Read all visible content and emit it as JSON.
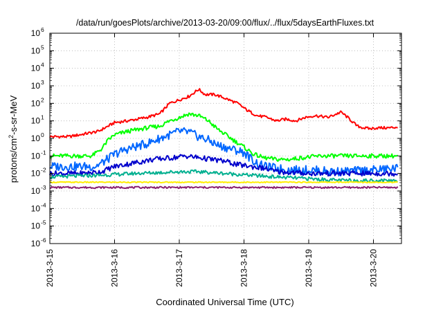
{
  "chart_data": {
    "type": "line",
    "title": "/data/run/goesPlots/archive/2013-03-20/09:00/flux/../flux/5daysEarthFluxes.txt",
    "xlabel": "Coordinated Universal Time (UTC)",
    "ylabel": {
      "prefix": "protons/cm",
      "superscript": "2",
      "suffix": "-s-sr-MeV"
    },
    "y_scale": "log",
    "y_exponent_range": [
      -6,
      6
    ],
    "ylim": [
      1e-06,
      1000000.0
    ],
    "y_tick_base": "10",
    "xlim": [
      "2013-03-15T00:00",
      "2013-03-20T09:00"
    ],
    "x_ticks": [
      {
        "label": "2013-3-15",
        "value": "2013-03-15"
      },
      {
        "label": "2013-3-16",
        "value": "2013-03-16"
      },
      {
        "label": "2013-3-17",
        "value": "2013-03-17"
      },
      {
        "label": "2013-3-18",
        "value": "2013-03-18"
      },
      {
        "label": "2013-3-19",
        "value": "2013-03-19"
      },
      {
        "label": "2013-3-20",
        "value": "2013-03-20"
      }
    ],
    "grid": true,
    "legend": "none",
    "series": [
      {
        "color": "#ff0000",
        "x_days": [
          0,
          0.3,
          0.6,
          0.75,
          0.85,
          1.0,
          1.2,
          1.5,
          1.7,
          1.85,
          2.0,
          2.15,
          2.3,
          2.4,
          2.55,
          2.7,
          2.9,
          3.05,
          3.2,
          3.35,
          3.5,
          3.65,
          3.8,
          3.95,
          4.1,
          4.3,
          4.5,
          4.6,
          4.75,
          4.85,
          4.95,
          5.05,
          5.15,
          5.25,
          5.375
        ],
        "log_values": [
          0.1,
          0.1,
          0.3,
          0.4,
          0.6,
          0.9,
          1.0,
          1.2,
          1.4,
          2.0,
          2.2,
          2.4,
          2.8,
          2.5,
          2.5,
          2.3,
          2.0,
          1.6,
          1.3,
          1.2,
          1.0,
          1.1,
          1.0,
          1.2,
          1.3,
          1.2,
          1.5,
          1.2,
          0.7,
          0.6,
          0.55,
          0.6,
          0.6,
          0.6,
          0.65
        ]
      },
      {
        "color": "#00ff00",
        "x_days": [
          0,
          0.4,
          0.65,
          0.8,
          0.9,
          1.0,
          1.2,
          1.5,
          1.7,
          1.85,
          2.0,
          2.15,
          2.3,
          2.45,
          2.6,
          2.8,
          3.0,
          3.15,
          3.3,
          3.5,
          3.7,
          3.9,
          4.2,
          4.6,
          5.0,
          5.375
        ],
        "log_values": [
          -1.0,
          -1.0,
          -1.0,
          -0.6,
          -0.1,
          0.2,
          0.4,
          0.6,
          0.7,
          1.0,
          1.2,
          1.4,
          1.3,
          1.0,
          0.5,
          0.0,
          -0.5,
          -0.9,
          -1.1,
          -1.2,
          -1.2,
          -1.1,
          -1.0,
          -1.0,
          -1.0,
          -1.0
        ]
      },
      {
        "color": "#0066ff",
        "x_days": [
          0,
          0.4,
          0.7,
          0.85,
          1.0,
          1.2,
          1.5,
          1.7,
          1.85,
          2.0,
          2.15,
          2.3,
          2.45,
          2.6,
          2.8,
          3.0,
          3.15,
          3.3,
          3.5,
          3.7,
          4.0,
          4.5,
          5.0,
          5.375
        ],
        "log_values": [
          -1.6,
          -1.6,
          -1.6,
          -1.3,
          -0.9,
          -0.6,
          -0.3,
          0.0,
          0.2,
          0.4,
          0.35,
          0.1,
          -0.1,
          -0.4,
          -0.6,
          -0.8,
          -1.3,
          -1.6,
          -1.7,
          -1.8,
          -1.8,
          -1.9,
          -1.8,
          -1.7
        ]
      },
      {
        "color": "#0000cc",
        "x_days": [
          0,
          0.5,
          0.8,
          1.0,
          1.3,
          1.6,
          1.9,
          2.1,
          2.3,
          2.5,
          2.7,
          2.9,
          3.1,
          3.3,
          3.5,
          4.0,
          4.5,
          5.0,
          5.375
        ],
        "log_values": [
          -2.0,
          -2.0,
          -1.9,
          -1.6,
          -1.4,
          -1.2,
          -1.1,
          -1.0,
          -1.1,
          -1.2,
          -1.3,
          -1.5,
          -1.6,
          -1.7,
          -1.9,
          -2.0,
          -2.0,
          -2.0,
          -2.0
        ]
      },
      {
        "color": "#00b090",
        "x_days": [
          0,
          0.8,
          1.3,
          1.7,
          2.0,
          2.3,
          2.7,
          3.1,
          3.5,
          4.0,
          4.5,
          5.0,
          5.375
        ],
        "log_values": [
          -2.2,
          -2.1,
          -2.0,
          -1.95,
          -1.9,
          -1.9,
          -2.0,
          -2.1,
          -2.2,
          -2.3,
          -2.4,
          -2.4,
          -2.4
        ]
      },
      {
        "color": "#ffee00",
        "x_days": [
          0,
          1.0,
          2.0,
          3.0,
          4.0,
          5.0,
          5.375
        ],
        "log_values": [
          -2.5,
          -2.5,
          -2.5,
          -2.5,
          -2.5,
          -2.5,
          -2.5
        ]
      },
      {
        "color": "#8a2070",
        "x_days": [
          0,
          1.0,
          2.0,
          3.0,
          4.0,
          5.0,
          5.375
        ],
        "log_values": [
          -2.8,
          -2.8,
          -2.8,
          -2.8,
          -2.8,
          -2.8,
          -2.8
        ]
      }
    ]
  }
}
